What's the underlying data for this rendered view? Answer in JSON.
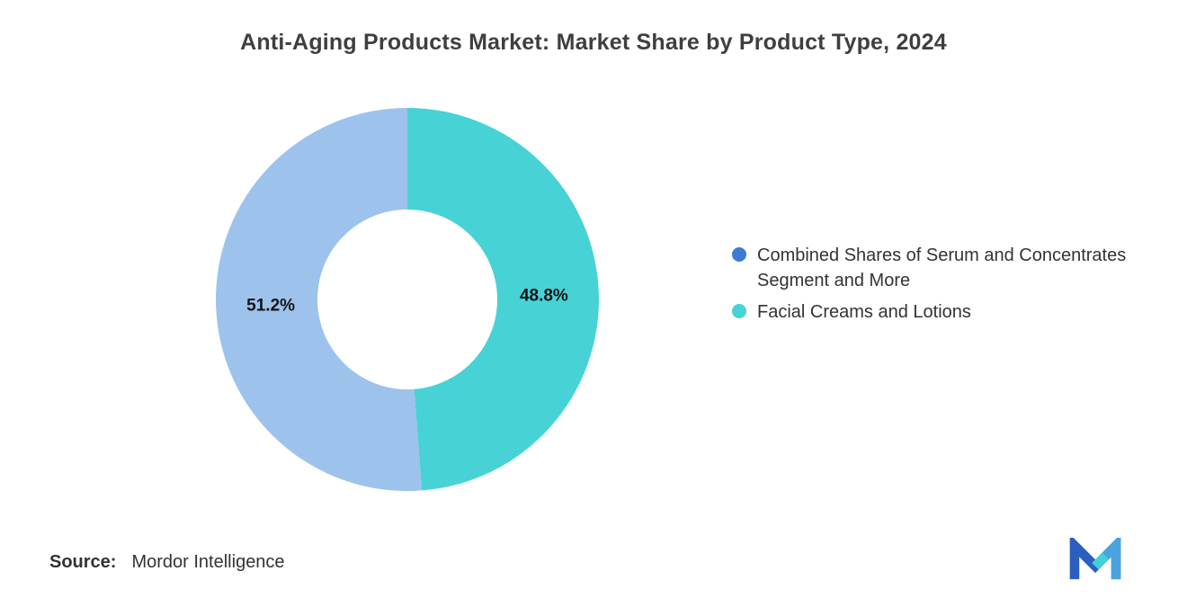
{
  "header": {
    "title": "Anti-Aging Products Market: Market Share by Product Type, 2024"
  },
  "chart_data": {
    "type": "pie",
    "subtype": "donut",
    "title": "Anti-Aging Products Market: Market Share by Product Type, 2024",
    "start_angle_deg": 0,
    "direction": "clockwise",
    "slices": [
      {
        "label": "Facial Creams and Lotions",
        "value": 48.8,
        "data_label": "48.8%",
        "color": "#47D2D6"
      },
      {
        "label": "Combined Shares of Serum and Concentrates Segment and More",
        "value": 51.2,
        "data_label": "51.2%",
        "color": "#9DC3ED"
      }
    ],
    "legend_position": "right",
    "legend": [
      {
        "label": "Combined Shares of Serum and Concentrates Segment and More",
        "marker_color": "#3D7BD3"
      },
      {
        "label": "Facial Creams and Lotions",
        "marker_color": "#47D2D6"
      }
    ]
  },
  "source": {
    "label": "Source:",
    "value": "Mordor Intelligence"
  },
  "icons": {
    "logo": "mordor-intelligence-m-logo"
  }
}
